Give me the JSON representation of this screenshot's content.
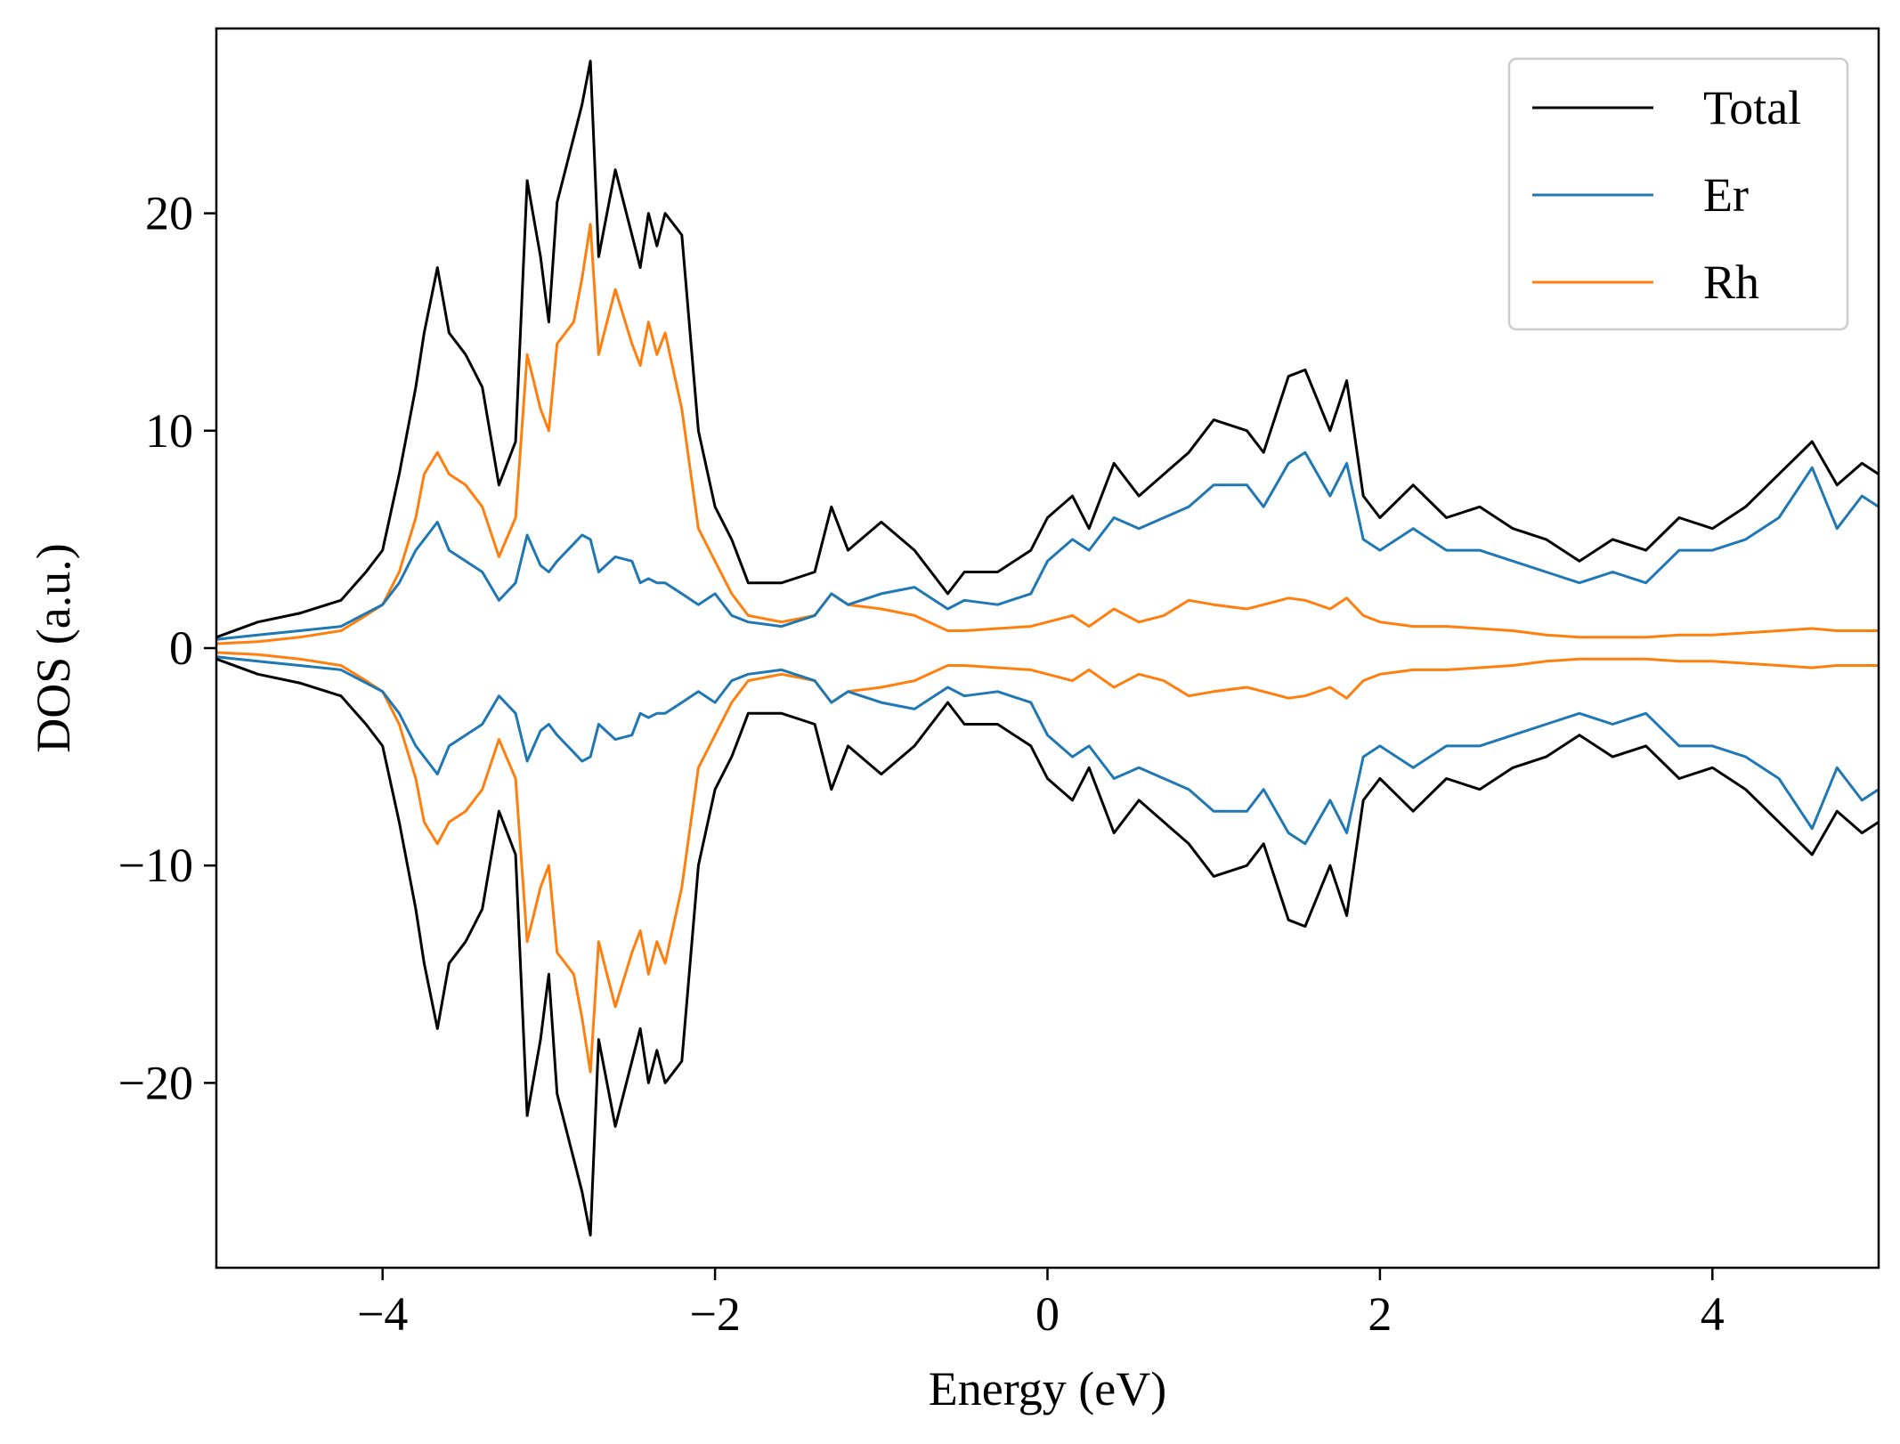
{
  "chart_data": {
    "type": "line",
    "title": "",
    "xlabel": "Energy (eV)",
    "ylabel": "DOS (a.u.)",
    "xlim": [
      -5,
      5
    ],
    "ylim": [
      -28.5,
      28.5
    ],
    "xticks": [
      -4,
      -2,
      0,
      2,
      4
    ],
    "xtick_labels": [
      "−4",
      "−2",
      "0",
      "2",
      "4"
    ],
    "yticks": [
      -20,
      -10,
      0,
      10,
      20
    ],
    "ytick_labels": [
      "−20",
      "−10",
      "0",
      "10",
      "20"
    ],
    "grid": false,
    "legend_position": "top-right",
    "mirror_spin_down": true,
    "x": [
      -5.0,
      -4.75,
      -4.5,
      -4.25,
      -4.1,
      -4.0,
      -3.9,
      -3.8,
      -3.75,
      -3.67,
      -3.6,
      -3.5,
      -3.4,
      -3.3,
      -3.2,
      -3.13,
      -3.05,
      -3.0,
      -2.95,
      -2.85,
      -2.8,
      -2.75,
      -2.7,
      -2.6,
      -2.5,
      -2.45,
      -2.4,
      -2.35,
      -2.3,
      -2.2,
      -2.1,
      -2.0,
      -1.9,
      -1.8,
      -1.6,
      -1.4,
      -1.3,
      -1.2,
      -1.0,
      -0.8,
      -0.6,
      -0.5,
      -0.3,
      -0.1,
      0.0,
      0.15,
      0.25,
      0.4,
      0.55,
      0.7,
      0.85,
      1.0,
      1.2,
      1.3,
      1.45,
      1.55,
      1.7,
      1.8,
      1.9,
      2.0,
      2.2,
      2.4,
      2.6,
      2.8,
      3.0,
      3.2,
      3.4,
      3.6,
      3.8,
      4.0,
      4.2,
      4.4,
      4.6,
      4.75,
      4.9,
      5.0
    ],
    "series": [
      {
        "name": "Total",
        "color": "#000000",
        "values": [
          0.5,
          1.2,
          1.6,
          2.2,
          3.5,
          4.5,
          8.0,
          12.0,
          14.5,
          17.5,
          14.5,
          13.5,
          12.0,
          7.5,
          9.5,
          21.5,
          18.0,
          15.0,
          20.5,
          23.5,
          25.0,
          27.0,
          18.0,
          22.0,
          19.0,
          17.5,
          20.0,
          18.5,
          20.0,
          19.0,
          10.0,
          6.5,
          5.0,
          3.0,
          3.0,
          3.5,
          6.5,
          4.5,
          5.8,
          4.5,
          2.5,
          3.5,
          3.5,
          4.5,
          6.0,
          7.0,
          5.5,
          8.5,
          7.0,
          8.0,
          9.0,
          10.5,
          10.0,
          9.0,
          12.5,
          12.8,
          10.0,
          12.3,
          7.0,
          6.0,
          7.5,
          6.0,
          6.5,
          5.5,
          5.0,
          4.0,
          5.0,
          4.5,
          6.0,
          5.5,
          6.5,
          8.0,
          9.5,
          7.5,
          8.5,
          8.0
        ]
      },
      {
        "name": "Er",
        "color": "#1f77b4",
        "values": [
          0.4,
          0.6,
          0.8,
          1.0,
          1.6,
          2.0,
          3.0,
          4.5,
          5.0,
          5.8,
          4.5,
          4.0,
          3.5,
          2.2,
          3.0,
          5.2,
          3.8,
          3.5,
          4.0,
          4.8,
          5.2,
          5.0,
          3.5,
          4.2,
          4.0,
          3.0,
          3.2,
          3.0,
          3.0,
          2.5,
          2.0,
          2.5,
          1.5,
          1.2,
          1.0,
          1.5,
          2.5,
          2.0,
          2.5,
          2.8,
          1.8,
          2.2,
          2.0,
          2.5,
          4.0,
          5.0,
          4.5,
          6.0,
          5.5,
          6.0,
          6.5,
          7.5,
          7.5,
          6.5,
          8.5,
          9.0,
          7.0,
          8.5,
          5.0,
          4.5,
          5.5,
          4.5,
          4.5,
          4.0,
          3.5,
          3.0,
          3.5,
          3.0,
          4.5,
          4.5,
          5.0,
          6.0,
          8.3,
          5.5,
          7.0,
          6.5
        ]
      },
      {
        "name": "Rh",
        "color": "#ff7f0e",
        "values": [
          0.2,
          0.3,
          0.5,
          0.8,
          1.5,
          2.0,
          3.5,
          6.0,
          8.0,
          9.0,
          8.0,
          7.5,
          6.5,
          4.2,
          6.0,
          13.5,
          11.0,
          10.0,
          14.0,
          15.0,
          17.0,
          19.5,
          13.5,
          16.5,
          14.0,
          13.0,
          15.0,
          13.5,
          14.5,
          11.0,
          5.5,
          4.0,
          2.5,
          1.5,
          1.2,
          1.5,
          2.5,
          2.0,
          1.8,
          1.5,
          0.8,
          0.8,
          0.9,
          1.0,
          1.2,
          1.5,
          1.0,
          1.8,
          1.2,
          1.5,
          2.2,
          2.0,
          1.8,
          2.0,
          2.3,
          2.2,
          1.8,
          2.3,
          1.5,
          1.2,
          1.0,
          1.0,
          0.9,
          0.8,
          0.6,
          0.5,
          0.5,
          0.5,
          0.6,
          0.6,
          0.7,
          0.8,
          0.9,
          0.8,
          0.8,
          0.8
        ]
      }
    ]
  }
}
